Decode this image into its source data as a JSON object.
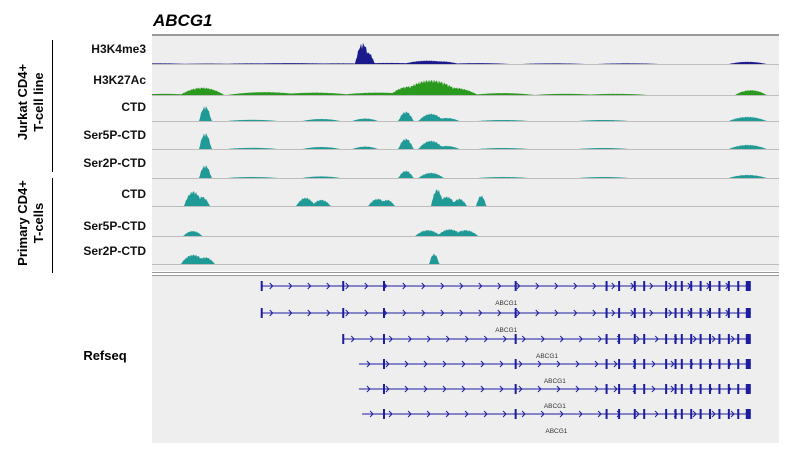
{
  "gene_title": "ABCG1",
  "groups": [
    {
      "label_line1": "Jurkat CD4+",
      "label_line2": "T-cell line"
    },
    {
      "label_line1": "Primary CD4+",
      "label_line2": "T-cells"
    }
  ],
  "tracks": [
    {
      "label": "H3K4me3",
      "color": "#1a1a8c",
      "group": 0,
      "peaks": [
        [
          0.01,
          0.03,
          0.05
        ],
        [
          0.09,
          0.02,
          0.05
        ],
        [
          0.16,
          0.03,
          0.05
        ],
        [
          0.22,
          0.04,
          0.08
        ],
        [
          0.3,
          0.03,
          0.06
        ],
        [
          0.336,
          0.9,
          0.012
        ],
        [
          0.345,
          0.5,
          0.01
        ],
        [
          0.38,
          0.05,
          0.05
        ],
        [
          0.44,
          0.15,
          0.04
        ],
        [
          0.46,
          0.12,
          0.03
        ],
        [
          0.52,
          0.04,
          0.05
        ],
        [
          0.64,
          0.03,
          0.05
        ],
        [
          0.76,
          0.03,
          0.05
        ],
        [
          0.95,
          0.1,
          0.03
        ]
      ]
    },
    {
      "label": "H3K27Ac",
      "color": "#2a9a1e",
      "group": 0,
      "peaks": [
        [
          0.02,
          0.05,
          0.04
        ],
        [
          0.08,
          0.3,
          0.035
        ],
        [
          0.18,
          0.12,
          0.06
        ],
        [
          0.26,
          0.1,
          0.06
        ],
        [
          0.36,
          0.1,
          0.06
        ],
        [
          0.41,
          0.35,
          0.03
        ],
        [
          0.445,
          0.6,
          0.05
        ],
        [
          0.48,
          0.3,
          0.04
        ],
        [
          0.56,
          0.08,
          0.05
        ],
        [
          0.66,
          0.05,
          0.05
        ],
        [
          0.74,
          0.05,
          0.05
        ],
        [
          0.955,
          0.2,
          0.025
        ]
      ]
    },
    {
      "label": "CTD",
      "color": "#1f9a96",
      "group": 0,
      "peaks": [
        [
          0.085,
          0.7,
          0.01
        ],
        [
          0.16,
          0.06,
          0.04
        ],
        [
          0.27,
          0.1,
          0.03
        ],
        [
          0.34,
          0.12,
          0.02
        ],
        [
          0.405,
          0.45,
          0.012
        ],
        [
          0.445,
          0.35,
          0.02
        ],
        [
          0.47,
          0.15,
          0.02
        ],
        [
          0.56,
          0.05,
          0.04
        ],
        [
          0.72,
          0.05,
          0.04
        ],
        [
          0.95,
          0.2,
          0.03
        ]
      ]
    },
    {
      "label": "Ser5P-CTD",
      "color": "#1f9a96",
      "group": 0,
      "peaks": [
        [
          0.085,
          0.75,
          0.01
        ],
        [
          0.16,
          0.06,
          0.04
        ],
        [
          0.27,
          0.1,
          0.03
        ],
        [
          0.34,
          0.12,
          0.02
        ],
        [
          0.405,
          0.5,
          0.012
        ],
        [
          0.445,
          0.4,
          0.02
        ],
        [
          0.47,
          0.15,
          0.02
        ],
        [
          0.56,
          0.05,
          0.04
        ],
        [
          0.72,
          0.05,
          0.04
        ],
        [
          0.95,
          0.2,
          0.03
        ]
      ]
    },
    {
      "label": "Ser2P-CTD",
      "color": "#1f9a96",
      "group": 0,
      "peaks": [
        [
          0.085,
          0.6,
          0.01
        ],
        [
          0.16,
          0.05,
          0.04
        ],
        [
          0.27,
          0.08,
          0.03
        ],
        [
          0.405,
          0.35,
          0.012
        ],
        [
          0.445,
          0.25,
          0.02
        ],
        [
          0.56,
          0.05,
          0.04
        ],
        [
          0.72,
          0.05,
          0.04
        ],
        [
          0.95,
          0.15,
          0.03
        ]
      ]
    },
    {
      "label": "CTD",
      "color": "#1f9a96",
      "group": 1,
      "peaks": [
        [
          0.066,
          0.7,
          0.015
        ],
        [
          0.08,
          0.45,
          0.012
        ],
        [
          0.245,
          0.4,
          0.015
        ],
        [
          0.27,
          0.3,
          0.015
        ],
        [
          0.36,
          0.35,
          0.015
        ],
        [
          0.375,
          0.3,
          0.012
        ],
        [
          0.455,
          0.8,
          0.01
        ],
        [
          0.47,
          0.45,
          0.015
        ],
        [
          0.49,
          0.35,
          0.012
        ],
        [
          0.525,
          0.5,
          0.008
        ]
      ]
    },
    {
      "label": "Ser5P-CTD",
      "color": "#1f9a96",
      "group": 1,
      "peaks": [
        [
          0.065,
          0.3,
          0.015
        ],
        [
          0.44,
          0.35,
          0.02
        ],
        [
          0.475,
          0.4,
          0.02
        ],
        [
          0.5,
          0.35,
          0.02
        ]
      ]
    },
    {
      "label": "Ser2P-CTD",
      "color": "#1f9a96",
      "group": 1,
      "peaks": [
        [
          0.066,
          0.55,
          0.02
        ],
        [
          0.085,
          0.4,
          0.015
        ],
        [
          0.45,
          0.6,
          0.008
        ]
      ]
    }
  ],
  "refseq": {
    "label": "Refseq",
    "color": "#1c1ca0",
    "isoforms": [
      {
        "label": "ABCG1",
        "start": 0.175,
        "end": 0.955
      },
      {
        "label": "ABCG1",
        "start": 0.175,
        "end": 0.955
      },
      {
        "label": "ABCG1",
        "start": 0.305,
        "end": 0.955
      },
      {
        "label": "ABCG1",
        "start": 0.33,
        "end": 0.955
      },
      {
        "label": "ABCG1",
        "start": 0.33,
        "end": 0.955
      },
      {
        "label": "ABCG1",
        "start": 0.335,
        "end": 0.955
      }
    ],
    "exons": [
      0.175,
      0.305,
      0.37,
      0.58,
      0.725,
      0.745,
      0.77,
      0.785,
      0.82,
      0.835,
      0.845,
      0.86,
      0.875,
      0.89,
      0.905,
      0.92,
      0.935,
      0.955
    ]
  }
}
